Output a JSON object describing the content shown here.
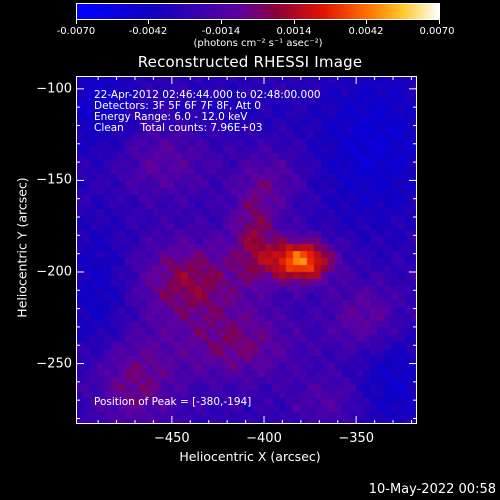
{
  "colorbar": {
    "tick_labels": [
      "-0.0070",
      "-0.0042",
      "-0.0014",
      "0.0014",
      "0.0042",
      "0.0070"
    ],
    "unit_label": "(photons cm⁻² s⁻¹ asec⁻²)",
    "colormap": "rainbow-blue-purple-red-yellow-white",
    "range": [
      -0.007,
      0.007
    ]
  },
  "title": "Reconstructed RHESSI Image",
  "info": {
    "line1": "22-Apr-2012 02:46:44.000 to 02:48:00.000",
    "line2": "Detectors: 3F 5F 6F 7F 8F, Att 0",
    "line3": "Energy Range: 6.0 - 12.0 keV",
    "line4": "Clean     Total counts: 7.96E+03",
    "peak": "Position of Peak = [-380,-194]"
  },
  "timestamp": "10-May-2022 00:58",
  "chart_data": {
    "type": "heatmap",
    "title": "Reconstructed RHESSI Image",
    "xlabel": "Heliocentric X (arcsec)",
    "ylabel": "Heliocentric Y (arcsec)",
    "xlim": [
      -502,
      -317
    ],
    "ylim": [
      -283,
      -93
    ],
    "x_ticks": [
      -450,
      -400,
      -350
    ],
    "x_tick_labels": [
      "−450",
      "−400",
      "−350"
    ],
    "y_ticks": [
      -100,
      -150,
      -200,
      -250
    ],
    "y_tick_labels": [
      "−100",
      "−150",
      "−200",
      "−250"
    ],
    "peak_position": [
      -380,
      -194
    ],
    "value_range": [
      -0.007,
      0.007
    ],
    "components": [
      {
        "x": -380,
        "y": -194,
        "amplitude": 0.007,
        "sx": 12,
        "sy": 8
      },
      {
        "x": -405,
        "y": -180,
        "amplitude": 0.003,
        "sx": 9,
        "sy": 18
      },
      {
        "x": -440,
        "y": -205,
        "amplitude": 0.0034,
        "sx": 20,
        "sy": 16
      },
      {
        "x": -415,
        "y": -240,
        "amplitude": 0.0026,
        "sx": 22,
        "sy": 14
      },
      {
        "x": -470,
        "y": -260,
        "amplitude": 0.0026,
        "sx": 16,
        "sy": 18
      },
      {
        "x": -455,
        "y": -140,
        "amplitude": 0.0018,
        "sx": 18,
        "sy": 14
      },
      {
        "x": -345,
        "y": -225,
        "amplitude": 0.0022,
        "sx": 14,
        "sy": 14
      },
      {
        "x": -365,
        "y": -270,
        "amplitude": 0.0014,
        "sx": 14,
        "sy": 10
      },
      {
        "x": -395,
        "y": -150,
        "amplitude": 0.0016,
        "sx": 14,
        "sy": 12
      },
      {
        "x": -490,
        "y": -110,
        "amplitude": -0.0018,
        "sx": 14,
        "sy": 20
      },
      {
        "x": -340,
        "y": -130,
        "amplitude": -0.0022,
        "sx": 22,
        "sy": 30
      },
      {
        "x": -490,
        "y": -210,
        "amplitude": -0.0016,
        "sx": 12,
        "sy": 26
      },
      {
        "x": -330,
        "y": -260,
        "amplitude": -0.0018,
        "sx": 14,
        "sy": 20
      },
      {
        "x": -420,
        "y": -110,
        "amplitude": -0.0008,
        "sx": 24,
        "sy": 10
      }
    ]
  }
}
